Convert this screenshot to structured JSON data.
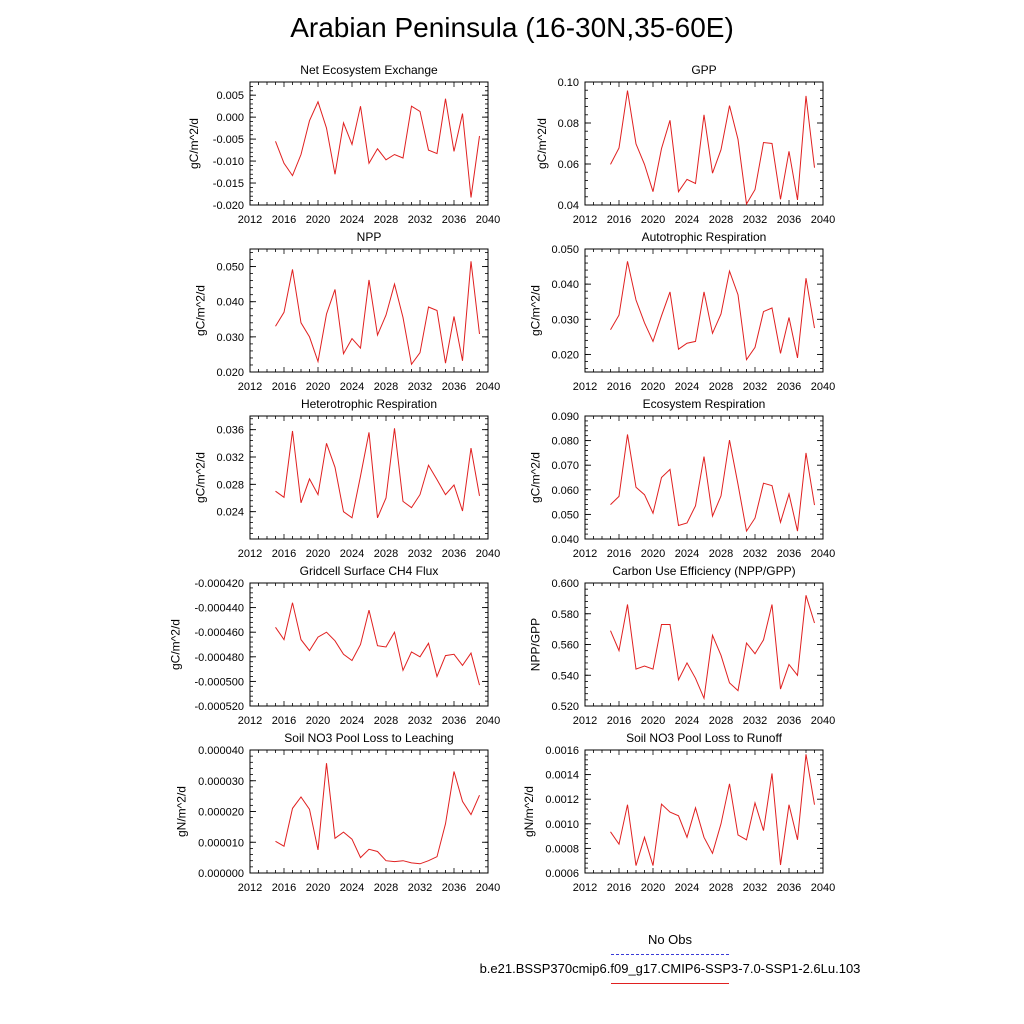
{
  "page": {
    "title": "Arabian Peninsula (16-30N,35-60E)"
  },
  "legend": {
    "obs_label": "No Obs",
    "model_label": "b.e21.BSSP370cmip6.f09_g17.CMIP6-SSP3-7.0-SSP1-2.6Lu.103",
    "obs_color": "#3a3ad8",
    "model_color": "#e02020"
  },
  "chart_data": [
    {
      "type": "line",
      "title": "Net Ecosystem Exchange",
      "ylabel": "gC/m^2/d",
      "xlim": [
        2012,
        2040
      ],
      "ylim": [
        -0.02,
        0.008
      ],
      "xticks": [
        "2012",
        "2016",
        "2020",
        "2024",
        "2028",
        "2032",
        "2036",
        "2040"
      ],
      "yticks": [
        -0.02,
        -0.015,
        -0.01,
        -0.005,
        0.0,
        0.005
      ],
      "ytick_labels": [
        "-0.020",
        "-0.015",
        "-0.010",
        "-0.005",
        "0.000",
        "0.005"
      ],
      "x": [
        2015,
        2016,
        2017,
        2018,
        2019,
        2020,
        2021,
        2022,
        2023,
        2024,
        2025,
        2026,
        2027,
        2028,
        2029,
        2030,
        2031,
        2032,
        2033,
        2034,
        2035,
        2036,
        2037,
        2038,
        2039
      ],
      "series": [
        {
          "color": "#e02020",
          "values": [
            -0.0055,
            -0.0105,
            -0.0133,
            -0.0085,
            -0.0008,
            0.0035,
            -0.0025,
            -0.013,
            -0.0013,
            -0.0062,
            0.0025,
            -0.0105,
            -0.0072,
            -0.0097,
            -0.0085,
            -0.0093,
            0.0025,
            0.0013,
            -0.0075,
            -0.0083,
            0.0042,
            -0.0078,
            0.0008,
            -0.0183,
            -0.0043
          ]
        }
      ]
    },
    {
      "type": "line",
      "title": "GPP",
      "ylabel": "gC/m^2/d",
      "xlim": [
        2012,
        2040
      ],
      "ylim": [
        0.04,
        0.1
      ],
      "xticks": [
        "2012",
        "2016",
        "2020",
        "2024",
        "2028",
        "2032",
        "2036",
        "2040"
      ],
      "yticks": [
        0.04,
        0.06,
        0.08,
        0.1
      ],
      "ytick_labels": [
        "0.04",
        "0.06",
        "0.08",
        "0.10"
      ],
      "x": [
        2015,
        2016,
        2017,
        2018,
        2019,
        2020,
        2021,
        2022,
        2023,
        2024,
        2025,
        2026,
        2027,
        2028,
        2029,
        2030,
        2031,
        2032,
        2033,
        2034,
        2035,
        2036,
        2037,
        2038,
        2039
      ],
      "series": [
        {
          "color": "#e02020",
          "values": [
            0.0598,
            0.0678,
            0.0958,
            0.0698,
            0.0598,
            0.0465,
            0.0675,
            0.0813,
            0.0465,
            0.0525,
            0.0505,
            0.084,
            0.0555,
            0.067,
            0.0885,
            0.072,
            0.0405,
            0.0475,
            0.0705,
            0.07,
            0.0428,
            0.0662,
            0.0425,
            0.0932,
            0.0582
          ]
        }
      ]
    },
    {
      "type": "line",
      "title": "NPP",
      "ylabel": "gC/m^2/d",
      "xlim": [
        2012,
        2040
      ],
      "ylim": [
        0.02,
        0.055
      ],
      "xticks": [
        "2012",
        "2016",
        "2020",
        "2024",
        "2028",
        "2032",
        "2036",
        "2040"
      ],
      "yticks": [
        0.02,
        0.03,
        0.04,
        0.05
      ],
      "ytick_labels": [
        "0.020",
        "0.030",
        "0.040",
        "0.050"
      ],
      "x": [
        2015,
        2016,
        2017,
        2018,
        2019,
        2020,
        2021,
        2022,
        2023,
        2024,
        2025,
        2026,
        2027,
        2028,
        2029,
        2030,
        2031,
        2032,
        2033,
        2034,
        2035,
        2036,
        2037,
        2038,
        2039
      ],
      "series": [
        {
          "color": "#e02020",
          "values": [
            0.033,
            0.037,
            0.0492,
            0.034,
            0.03,
            0.023,
            0.0365,
            0.0435,
            0.0252,
            0.0295,
            0.0268,
            0.0462,
            0.0305,
            0.0362,
            0.045,
            0.0355,
            0.0222,
            0.0255,
            0.0385,
            0.0375,
            0.0225,
            0.0358,
            0.0232,
            0.0515,
            0.0308
          ]
        }
      ]
    },
    {
      "type": "line",
      "title": "Autotrophic Respiration",
      "ylabel": "gC/m^2/d",
      "xlim": [
        2012,
        2040
      ],
      "ylim": [
        0.015,
        0.05
      ],
      "xticks": [
        "2012",
        "2016",
        "2020",
        "2024",
        "2028",
        "2032",
        "2036",
        "2040"
      ],
      "yticks": [
        0.02,
        0.03,
        0.04,
        0.05
      ],
      "ytick_labels": [
        "0.020",
        "0.030",
        "0.040",
        "0.050"
      ],
      "x": [
        2015,
        2016,
        2017,
        2018,
        2019,
        2020,
        2021,
        2022,
        2023,
        2024,
        2025,
        2026,
        2027,
        2028,
        2029,
        2030,
        2031,
        2032,
        2033,
        2034,
        2035,
        2036,
        2037,
        2038,
        2039
      ],
      "series": [
        {
          "color": "#e02020",
          "values": [
            0.027,
            0.0312,
            0.0465,
            0.0355,
            0.029,
            0.0237,
            0.031,
            0.0378,
            0.0215,
            0.0232,
            0.0237,
            0.0378,
            0.026,
            0.0315,
            0.0437,
            0.037,
            0.0185,
            0.022,
            0.0322,
            0.0332,
            0.0203,
            0.0305,
            0.019,
            0.0417,
            0.0275
          ]
        }
      ]
    },
    {
      "type": "line",
      "title": "Heterotrophic Respiration",
      "ylabel": "gC/m^2/d",
      "xlim": [
        2012,
        2040
      ],
      "ylim": [
        0.02,
        0.038
      ],
      "xticks": [
        "2012",
        "2016",
        "2020",
        "2024",
        "2028",
        "2032",
        "2036",
        "2040"
      ],
      "yticks": [
        0.024,
        0.028,
        0.032,
        0.036
      ],
      "ytick_labels": [
        "0.024",
        "0.028",
        "0.032",
        "0.036"
      ],
      "x": [
        2015,
        2016,
        2017,
        2018,
        2019,
        2020,
        2021,
        2022,
        2023,
        2024,
        2025,
        2026,
        2027,
        2028,
        2029,
        2030,
        2031,
        2032,
        2033,
        2034,
        2035,
        2036,
        2037,
        2038,
        2039
      ],
      "series": [
        {
          "color": "#e02020",
          "values": [
            0.027,
            0.0261,
            0.0358,
            0.0253,
            0.0288,
            0.0265,
            0.034,
            0.0305,
            0.024,
            0.0231,
            0.0292,
            0.0356,
            0.0231,
            0.026,
            0.0362,
            0.0255,
            0.0246,
            0.0265,
            0.0308,
            0.0287,
            0.0265,
            0.0279,
            0.0241,
            0.0333,
            0.0263
          ]
        }
      ]
    },
    {
      "type": "line",
      "title": "Ecosystem Respiration",
      "ylabel": "gC/m^2/d",
      "xlim": [
        2012,
        2040
      ],
      "ylim": [
        0.04,
        0.09
      ],
      "xticks": [
        "2012",
        "2016",
        "2020",
        "2024",
        "2028",
        "2032",
        "2036",
        "2040"
      ],
      "yticks": [
        0.04,
        0.05,
        0.06,
        0.07,
        0.08,
        0.09
      ],
      "ytick_labels": [
        "0.040",
        "0.050",
        "0.060",
        "0.070",
        "0.080",
        "0.090"
      ],
      "x": [
        2015,
        2016,
        2017,
        2018,
        2019,
        2020,
        2021,
        2022,
        2023,
        2024,
        2025,
        2026,
        2027,
        2028,
        2029,
        2030,
        2031,
        2032,
        2033,
        2034,
        2035,
        2036,
        2037,
        2038,
        2039
      ],
      "series": [
        {
          "color": "#e02020",
          "values": [
            0.054,
            0.0573,
            0.0825,
            0.061,
            0.058,
            0.0505,
            0.065,
            0.0683,
            0.0455,
            0.0465,
            0.0535,
            0.0735,
            0.0493,
            0.0575,
            0.0802,
            0.0622,
            0.0432,
            0.0485,
            0.0627,
            0.0617,
            0.0468,
            0.0583,
            0.0432,
            0.075,
            0.0538
          ]
        }
      ]
    },
    {
      "type": "line",
      "title": "Gridcell Surface CH4 Flux",
      "ylabel": "gC/m^2/d",
      "xlim": [
        2012,
        2040
      ],
      "ylim": [
        -0.00052,
        -0.00042
      ],
      "xticks": [
        "2012",
        "2016",
        "2020",
        "2024",
        "2028",
        "2032",
        "2036",
        "2040"
      ],
      "yticks": [
        -0.00052,
        -0.0005,
        -0.00048,
        -0.00046,
        -0.00044,
        -0.00042
      ],
      "ytick_labels": [
        "-0.000520",
        "-0.000500",
        "-0.000480",
        "-0.000460",
        "-0.000440",
        "-0.000420"
      ],
      "x": [
        2015,
        2016,
        2017,
        2018,
        2019,
        2020,
        2021,
        2022,
        2023,
        2024,
        2025,
        2026,
        2027,
        2028,
        2029,
        2030,
        2031,
        2032,
        2033,
        2034,
        2035,
        2036,
        2037,
        2038,
        2039
      ],
      "series": [
        {
          "color": "#e02020",
          "values": [
            -0.000456,
            -0.000466,
            -0.000436,
            -0.000466,
            -0.000475,
            -0.000464,
            -0.00046,
            -0.000467,
            -0.000478,
            -0.000483,
            -0.00047,
            -0.000442,
            -0.000471,
            -0.000472,
            -0.00046,
            -0.000491,
            -0.000476,
            -0.00048,
            -0.000469,
            -0.000496,
            -0.000479,
            -0.000478,
            -0.000487,
            -0.000477,
            -0.000503
          ]
        }
      ]
    },
    {
      "type": "line",
      "title": "Carbon Use Efficiency (NPP/GPP)",
      "ylabel": "NPP/GPP",
      "xlim": [
        2012,
        2040
      ],
      "ylim": [
        0.52,
        0.6
      ],
      "xticks": [
        "2012",
        "2016",
        "2020",
        "2024",
        "2028",
        "2032",
        "2036",
        "2040"
      ],
      "yticks": [
        0.52,
        0.54,
        0.56,
        0.58,
        0.6
      ],
      "ytick_labels": [
        "0.520",
        "0.540",
        "0.560",
        "0.580",
        "0.600"
      ],
      "x": [
        2015,
        2016,
        2017,
        2018,
        2019,
        2020,
        2021,
        2022,
        2023,
        2024,
        2025,
        2026,
        2027,
        2028,
        2029,
        2030,
        2031,
        2032,
        2033,
        2034,
        2035,
        2036,
        2037,
        2038,
        2039
      ],
      "series": [
        {
          "color": "#e02020",
          "values": [
            0.569,
            0.556,
            0.586,
            0.544,
            0.546,
            0.544,
            0.573,
            0.573,
            0.537,
            0.548,
            0.538,
            0.525,
            0.566,
            0.553,
            0.535,
            0.53,
            0.561,
            0.554,
            0.563,
            0.586,
            0.531,
            0.547,
            0.54,
            0.592,
            0.574
          ]
        }
      ]
    },
    {
      "type": "line",
      "title": "Soil NO3 Pool Loss to Leaching",
      "ylabel": "gN/m^2/d",
      "xlim": [
        2012,
        2040
      ],
      "ylim": [
        0.0,
        4e-05
      ],
      "xticks": [
        "2012",
        "2016",
        "2020",
        "2024",
        "2028",
        "2032",
        "2036",
        "2040"
      ],
      "yticks": [
        0.0,
        1e-05,
        2e-05,
        3e-05,
        4e-05
      ],
      "ytick_labels": [
        "0.000000",
        "0.000010",
        "0.000020",
        "0.000030",
        "0.000040"
      ],
      "x": [
        2015,
        2016,
        2017,
        2018,
        2019,
        2020,
        2021,
        2022,
        2023,
        2024,
        2025,
        2026,
        2027,
        2028,
        2029,
        2030,
        2031,
        2032,
        2033,
        2034,
        2035,
        2036,
        2037,
        2038,
        2039
      ],
      "series": [
        {
          "color": "#e02020",
          "values": [
            1.03e-05,
            8.7e-06,
            2.1e-05,
            2.47e-05,
            2.07e-05,
            7.5e-06,
            3.57e-05,
            1.13e-05,
            1.33e-05,
            1.1e-05,
            5e-06,
            7.7e-06,
            7e-06,
            4e-06,
            3.7e-06,
            4e-06,
            3.3e-06,
            3e-06,
            4e-06,
            5.3e-06,
            1.6e-05,
            3.3e-05,
            2.33e-05,
            1.9e-05,
            2.53e-05
          ]
        }
      ]
    },
    {
      "type": "line",
      "title": "Soil NO3 Pool Loss to Runoff",
      "ylabel": "gN/m^2/d",
      "xlim": [
        2012,
        2040
      ],
      "ylim": [
        0.0006,
        0.0016
      ],
      "xticks": [
        "2012",
        "2016",
        "2020",
        "2024",
        "2028",
        "2032",
        "2036",
        "2040"
      ],
      "yticks": [
        0.0006,
        0.0008,
        0.001,
        0.0012,
        0.0014,
        0.0016
      ],
      "ytick_labels": [
        "0.0006",
        "0.0008",
        "0.0010",
        "0.0012",
        "0.0014",
        "0.0016"
      ],
      "x": [
        2015,
        2016,
        2017,
        2018,
        2019,
        2020,
        2021,
        2022,
        2023,
        2024,
        2025,
        2026,
        2027,
        2028,
        2029,
        2030,
        2031,
        2032,
        2033,
        2034,
        2035,
        2036,
        2037,
        2038,
        2039
      ],
      "series": [
        {
          "color": "#e02020",
          "values": [
            0.000935,
            0.000835,
            0.001155,
            0.00066,
            0.00089,
            0.00066,
            0.00116,
            0.001095,
            0.001065,
            0.00089,
            0.00113,
            0.00089,
            0.00076,
            0.001,
            0.001325,
            0.00091,
            0.00087,
            0.00117,
            0.000945,
            0.00141,
            0.000665,
            0.001155,
            0.00087,
            0.001565,
            0.001155
          ]
        }
      ]
    }
  ]
}
